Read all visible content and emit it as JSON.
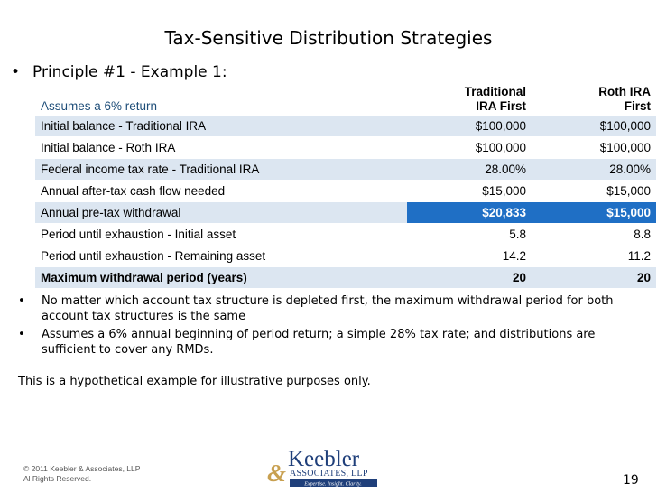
{
  "title": "Tax-Sensitive Distribution Strategies",
  "principle": {
    "bullet": "•",
    "text": "Principle #1 - Example 1:"
  },
  "table": {
    "header": {
      "label": "Assumes a 6% return",
      "col1": [
        "Traditional",
        "IRA First"
      ],
      "col2": [
        "Roth IRA",
        "First"
      ]
    },
    "rows": [
      {
        "label": "Initial balance - Traditional IRA",
        "v1": "$100,000",
        "v2": "$100,000"
      },
      {
        "label": "Initial balance - Roth IRA",
        "v1": "$100,000",
        "v2": "$100,000"
      },
      {
        "label": "Federal income tax rate - Traditional IRA",
        "v1": "28.00%",
        "v2": "28.00%"
      },
      {
        "label": "Annual after-tax cash flow needed",
        "v1": "$15,000",
        "v2": "$15,000"
      },
      {
        "label": "Annual pre-tax withdrawal",
        "v1": "$20,833",
        "v2": "$15,000"
      },
      {
        "label": "Period until exhaustion - Initial asset",
        "v1": "5.8",
        "v2": "8.8"
      },
      {
        "label": "Period until exhaustion - Remaining asset",
        "v1": "14.2",
        "v2": "11.2"
      },
      {
        "label": "Maximum withdrawal period (years)",
        "v1": "20",
        "v2": "20"
      }
    ]
  },
  "bullets": [
    "No matter which account tax structure is depleted first, the maximum withdrawal period for both account tax structures is the same",
    "Assumes a 6% annual beginning of period return; a simple 28% tax rate; and distributions are sufficient to cover any RMDs."
  ],
  "bullet_symbol": "•",
  "note": "This is a hypothetical example for illustrative purposes only.",
  "footer": {
    "copyright_line1": "© 2011 Keebler & Associates, LLP",
    "copyright_line2": "Al Rights Reserved.",
    "page_number": "19"
  },
  "logo": {
    "name": "Keebler",
    "ampersand": "&",
    "associates": "ASSOCIATES, LLP",
    "tagline": "Expertise. Insight. Clarity."
  },
  "colors": {
    "title_text": "#000000",
    "row_shade": "#dce6f1",
    "highlight": "#1f6fc5",
    "logo_blue": "#1f3f7a",
    "logo_gold": "#c8a050"
  }
}
